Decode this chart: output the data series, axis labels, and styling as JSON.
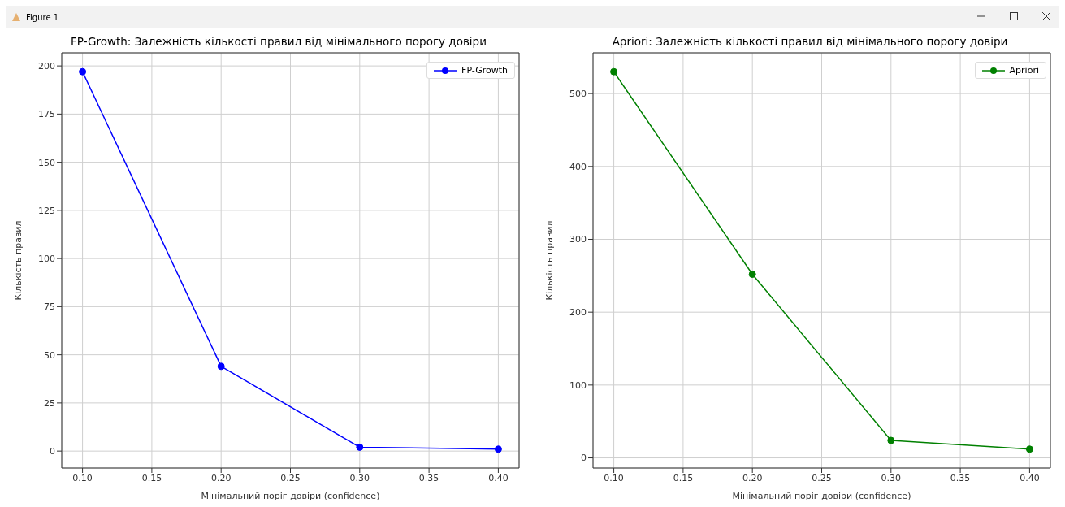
{
  "chart_data": [
    {
      "type": "line",
      "title": "FP-Growth: Залежність кількості правил від мінімального порогу довіри",
      "xlabel": "Мінімальний поріг довіри (confidence)",
      "ylabel": "Кількість правил",
      "annotations": [
        "Figure 1"
      ],
      "x": [
        0.1,
        0.2,
        0.3,
        0.4
      ],
      "series": [
        {
          "name": "FP-Growth",
          "color": "#0000ff",
          "values": [
            197,
            44,
            2,
            1
          ]
        }
      ],
      "xlim": [
        0.085,
        0.415
      ],
      "xticks": [
        {
          "value": 0.1,
          "label": "0.10"
        },
        {
          "value": 0.15,
          "label": "0.15"
        },
        {
          "value": 0.2,
          "label": "0.20"
        },
        {
          "value": 0.25,
          "label": "0.25"
        },
        {
          "value": 0.3,
          "label": "0.30"
        },
        {
          "value": 0.35,
          "label": "0.35"
        },
        {
          "value": 0.4,
          "label": "0.40"
        }
      ],
      "ylim": [
        -8.8,
        206.8
      ],
      "yticks": [
        0,
        25,
        50,
        75,
        100,
        125,
        150,
        175,
        200
      ],
      "grid": true,
      "legend": "top right",
      "marker": "circle",
      "line_style": "solid"
    },
    {
      "type": "line",
      "title": "Apriori: Залежність кількості правил від мінімального порогу довіри",
      "xlabel": "Мінімальний поріг довіри (confidence)",
      "ylabel": "Кількість правил",
      "x": [
        0.1,
        0.2,
        0.3,
        0.4
      ],
      "series": [
        {
          "name": "Apriori",
          "color": "#008000",
          "values": [
            530,
            252,
            24,
            12
          ]
        }
      ],
      "xlim": [
        0.085,
        0.415
      ],
      "xticks": [
        {
          "value": 0.1,
          "label": "0.10"
        },
        {
          "value": 0.15,
          "label": "0.15"
        },
        {
          "value": 0.2,
          "label": "0.20"
        },
        {
          "value": 0.25,
          "label": "0.25"
        },
        {
          "value": 0.3,
          "label": "0.30"
        },
        {
          "value": 0.35,
          "label": "0.35"
        },
        {
          "value": 0.4,
          "label": "0.40"
        }
      ],
      "ylim": [
        -13.9,
        555.9
      ],
      "yticks": [
        0,
        100,
        200,
        300,
        400,
        500
      ],
      "grid": true,
      "legend": "top right",
      "marker": "circle",
      "line_style": "solid"
    }
  ]
}
